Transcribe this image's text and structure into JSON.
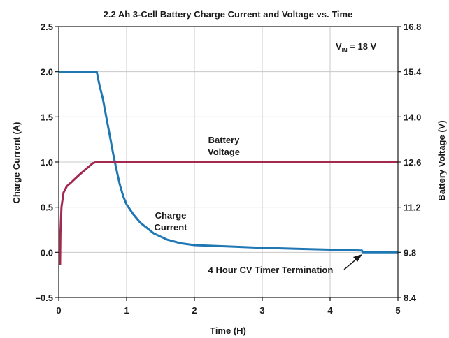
{
  "chart_data": {
    "type": "line",
    "title": "2.2 Ah 3-Cell Battery Charge Current and Voltage vs. Time",
    "xlabel": "Time (H)",
    "ylabel": "Charge Current (A)",
    "y2label": "Battery Voltage (V)",
    "xlim": [
      0,
      5
    ],
    "ylim": [
      -0.5,
      2.5
    ],
    "y2lim": [
      8.4,
      16.8
    ],
    "x_ticks": [
      "0",
      "1",
      "2",
      "3",
      "4",
      "5"
    ],
    "y_ticks": [
      "2.5",
      "2.0",
      "1.5",
      "1.0",
      "0.5",
      "0.0",
      "–0.5"
    ],
    "y2_ticks": [
      "16.8",
      "15.4",
      "14.0",
      "12.6",
      "11.2",
      "9.8",
      "8.4"
    ],
    "grid": true,
    "series": [
      {
        "name": "Charge Current",
        "color": "#1f77b4",
        "axis": "left",
        "points": [
          [
            0,
            2.0
          ],
          [
            0.56,
            2.0
          ],
          [
            0.6,
            1.85
          ],
          [
            0.65,
            1.7
          ],
          [
            0.7,
            1.5
          ],
          [
            0.75,
            1.3
          ],
          [
            0.8,
            1.1
          ],
          [
            0.85,
            0.92
          ],
          [
            0.9,
            0.75
          ],
          [
            0.95,
            0.62
          ],
          [
            1.0,
            0.53
          ],
          [
            1.1,
            0.42
          ],
          [
            1.2,
            0.33
          ],
          [
            1.4,
            0.21
          ],
          [
            1.6,
            0.14
          ],
          [
            1.8,
            0.1
          ],
          [
            2.0,
            0.08
          ],
          [
            2.5,
            0.065
          ],
          [
            3.0,
            0.05
          ],
          [
            3.5,
            0.04
          ],
          [
            4.0,
            0.03
          ],
          [
            4.47,
            0.02
          ],
          [
            4.48,
            0.0
          ],
          [
            5.0,
            0.0
          ]
        ]
      },
      {
        "name": "Battery Voltage",
        "color": "#a3294f",
        "axis": "right",
        "points": [
          [
            0.02,
            9.4
          ],
          [
            0.025,
            10.4
          ],
          [
            0.04,
            11.2
          ],
          [
            0.07,
            11.65
          ],
          [
            0.12,
            11.85
          ],
          [
            0.2,
            12.0
          ],
          [
            0.3,
            12.2
          ],
          [
            0.4,
            12.38
          ],
          [
            0.5,
            12.56
          ],
          [
            0.55,
            12.6
          ],
          [
            5.0,
            12.6
          ]
        ]
      }
    ],
    "annotations": {
      "vin_main": "V",
      "vin_sub": "IN",
      "vin_rest": " = 18 V",
      "voltage_line1": "Battery",
      "voltage_line2": "Voltage",
      "current_line1": "Charge",
      "current_line2": "Current",
      "timer": "4 Hour CV Timer Termination"
    }
  }
}
